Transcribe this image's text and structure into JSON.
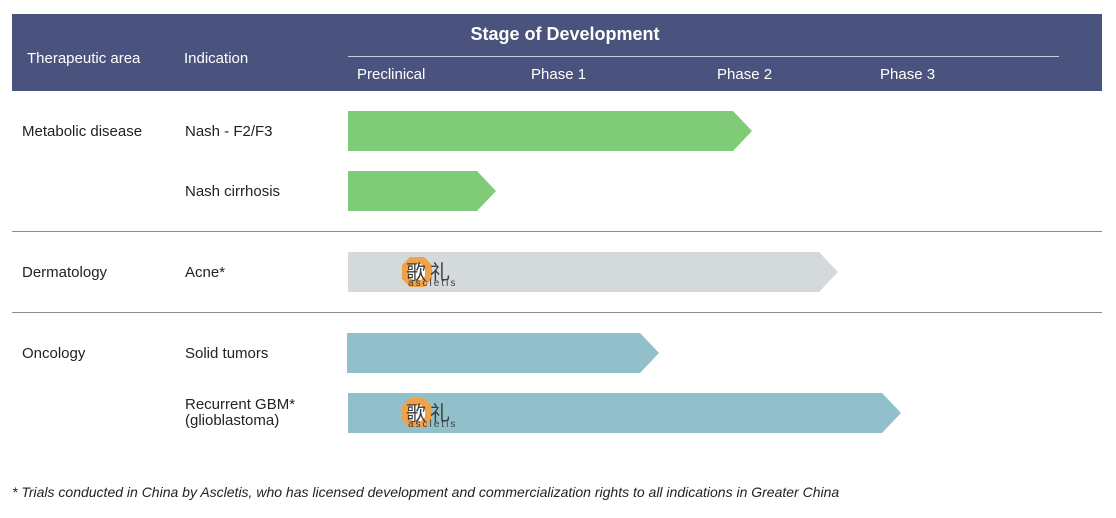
{
  "header": {
    "therapeutic_area": "Therapeutic area",
    "indication": "Indication",
    "stage_title": "Stage of Development",
    "phases": [
      "Preclinical",
      "Phase 1",
      "Phase 2",
      "Phase 3"
    ]
  },
  "rows": [
    {
      "area": "Metabolic disease",
      "indication": "Nash - F2/F3",
      "stage": "Phase 2",
      "color": "#7fcb78"
    },
    {
      "area": "",
      "indication": "Nash cirrhosis",
      "stage": "Preclinical",
      "color": "#7fcb78"
    },
    {
      "area": "Dermatology",
      "indication": "Acne*",
      "stage": "Phase 2",
      "color": "#d4d9dc",
      "partner": {
        "logo_icon": "ascletis-logo-icon",
        "name_cn": "歌礼",
        "name_en": "ascletis"
      }
    },
    {
      "area": "Oncology",
      "indication": "Solid tumors",
      "stage": "Phase 1",
      "color": "#91c0cb"
    },
    {
      "area": "",
      "indication": "Recurrent GBM*\n(glioblastoma)",
      "stage": "Phase 2",
      "color": "#91c0cb",
      "partner": {
        "logo_icon": "ascletis-logo-icon",
        "name_cn": "歌礼",
        "name_en": "ascletis"
      }
    }
  ],
  "footnote": "* Trials conducted in China by Ascletis, who has licensed development and commercialization rights to all indications in Greater China"
}
